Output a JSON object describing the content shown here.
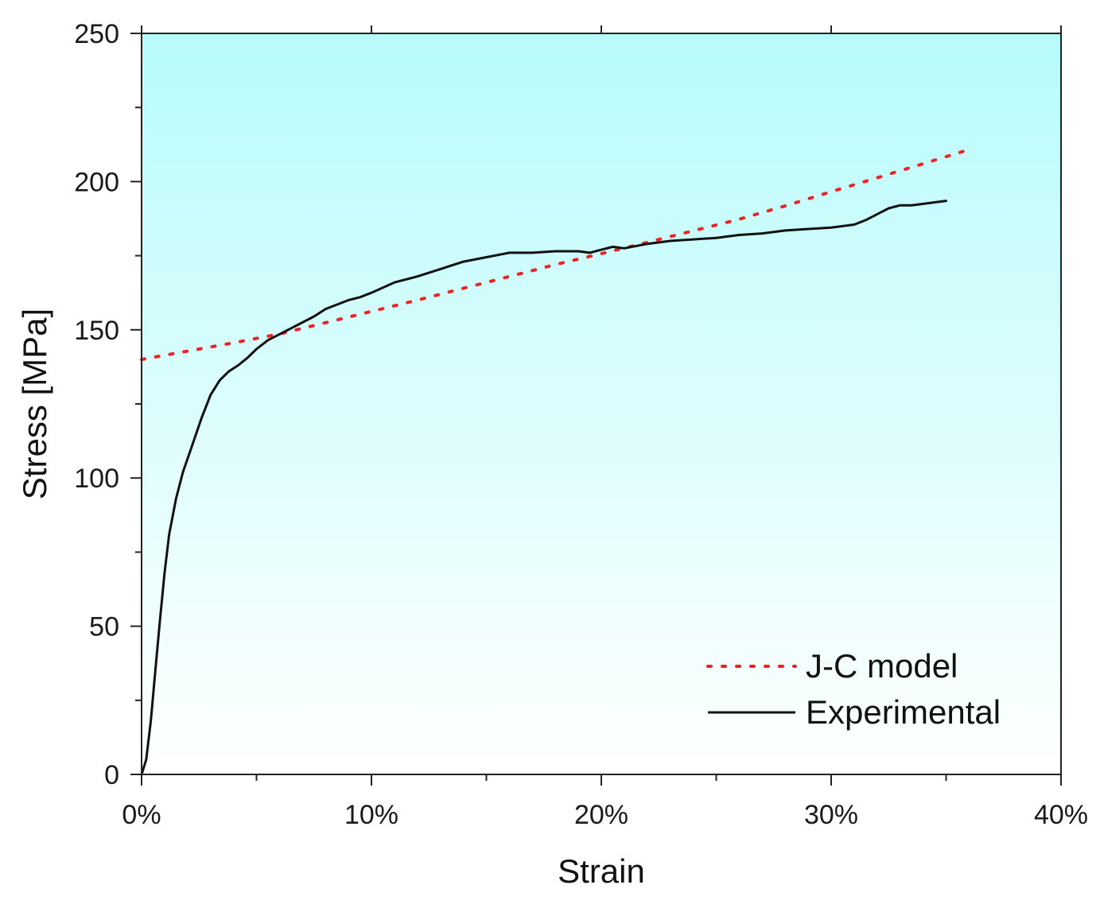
{
  "chart_data": {
    "type": "line",
    "title": "",
    "xlabel": "Strain",
    "ylabel": "Stress [MPa]",
    "xlim": [
      0,
      0.4
    ],
    "ylim": [
      0,
      250
    ],
    "x_ticks": [
      0,
      0.1,
      0.2,
      0.3,
      0.4
    ],
    "x_tick_labels": [
      "0%",
      "10%",
      "20%",
      "30%",
      "40%"
    ],
    "y_ticks": [
      0,
      50,
      100,
      150,
      200,
      250
    ],
    "y_tick_labels": [
      "0",
      "50",
      "100",
      "150",
      "200",
      "250"
    ],
    "grid": false,
    "legend_position": "bottom-right",
    "background": {
      "top": "#b8fbfb",
      "bottom": "#ffffff"
    },
    "series": [
      {
        "name": "J-C model",
        "style": "dotted",
        "color": "#ee2222",
        "x": [
          0,
          0.02,
          0.04,
          0.06,
          0.08,
          0.1,
          0.12,
          0.14,
          0.16,
          0.18,
          0.2,
          0.22,
          0.24,
          0.26,
          0.28,
          0.3,
          0.32,
          0.34,
          0.36
        ],
        "y": [
          140,
          142.8,
          145.6,
          148.6,
          152.4,
          156.2,
          160,
          164,
          168,
          172,
          175.7,
          179.5,
          183.4,
          187.3,
          191.8,
          196.6,
          201.3,
          206,
          210.8
        ]
      },
      {
        "name": "Experimental",
        "style": "solid",
        "color": "#111111",
        "x": [
          0,
          0.002,
          0.004,
          0.006,
          0.008,
          0.01,
          0.012,
          0.015,
          0.018,
          0.022,
          0.026,
          0.03,
          0.034,
          0.038,
          0.042,
          0.046,
          0.05,
          0.055,
          0.06,
          0.065,
          0.07,
          0.075,
          0.08,
          0.085,
          0.09,
          0.095,
          0.1,
          0.11,
          0.12,
          0.13,
          0.14,
          0.15,
          0.16,
          0.17,
          0.18,
          0.19,
          0.195,
          0.2,
          0.205,
          0.21,
          0.22,
          0.23,
          0.24,
          0.25,
          0.26,
          0.27,
          0.28,
          0.29,
          0.3,
          0.31,
          0.315,
          0.32,
          0.325,
          0.33,
          0.335,
          0.34,
          0.345,
          0.35
        ],
        "y": [
          0,
          5,
          18,
          35,
          52,
          68,
          81,
          93,
          102,
          111,
          120,
          128,
          133,
          136,
          138,
          140.5,
          143.5,
          146.5,
          148.5,
          150.5,
          152.5,
          154.5,
          157,
          158.5,
          160,
          161,
          162.5,
          166,
          168,
          170.5,
          173,
          174.5,
          176,
          176,
          176.5,
          176.5,
          176,
          177,
          178,
          177.5,
          179,
          180,
          180.5,
          181,
          182,
          182.5,
          183.5,
          184,
          184.5,
          185.5,
          187,
          189,
          191,
          192,
          192,
          192.5,
          193,
          193.5
        ]
      }
    ]
  }
}
